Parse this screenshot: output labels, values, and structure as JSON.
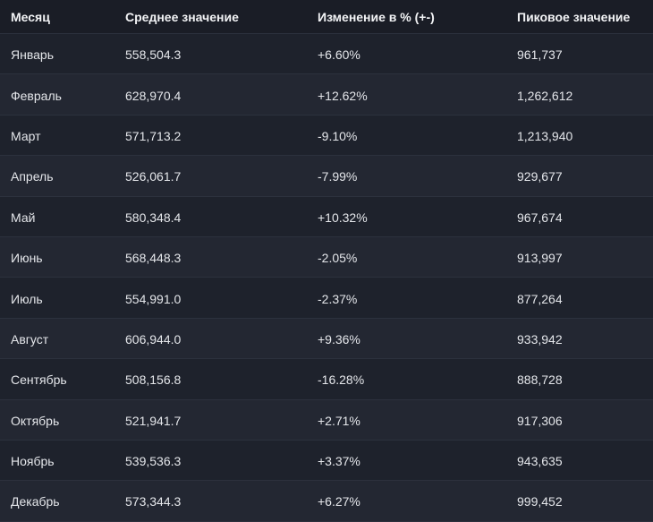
{
  "table": {
    "headers": [
      "Месяц",
      "Среднее значение",
      "Изменение в % (+-)",
      "Пиковое значение"
    ],
    "rows": [
      {
        "month": "Январь",
        "avg": "558,504.3",
        "change": "+6.60%",
        "peak": "961,737"
      },
      {
        "month": "Февраль",
        "avg": "628,970.4",
        "change": "+12.62%",
        "peak": "1,262,612"
      },
      {
        "month": "Март",
        "avg": "571,713.2",
        "change": "-9.10%",
        "peak": "1,213,940"
      },
      {
        "month": "Апрель",
        "avg": "526,061.7",
        "change": "-7.99%",
        "peak": "929,677"
      },
      {
        "month": "Май",
        "avg": "580,348.4",
        "change": "+10.32%",
        "peak": "967,674"
      },
      {
        "month": "Июнь",
        "avg": "568,448.3",
        "change": "-2.05%",
        "peak": "913,997"
      },
      {
        "month": "Июль",
        "avg": "554,991.0",
        "change": "-2.37%",
        "peak": "877,264"
      },
      {
        "month": "Август",
        "avg": "606,944.0",
        "change": "+9.36%",
        "peak": "933,942"
      },
      {
        "month": "Сентябрь",
        "avg": "508,156.8",
        "change": "-16.28%",
        "peak": "888,728"
      },
      {
        "month": "Октябрь",
        "avg": "521,941.7",
        "change": "+2.71%",
        "peak": "917,306"
      },
      {
        "month": "Ноябрь",
        "avg": "539,536.3",
        "change": "+3.37%",
        "peak": "943,635"
      },
      {
        "month": "Декабрь",
        "avg": "573,344.3",
        "change": "+6.27%",
        "peak": "999,452"
      }
    ]
  }
}
